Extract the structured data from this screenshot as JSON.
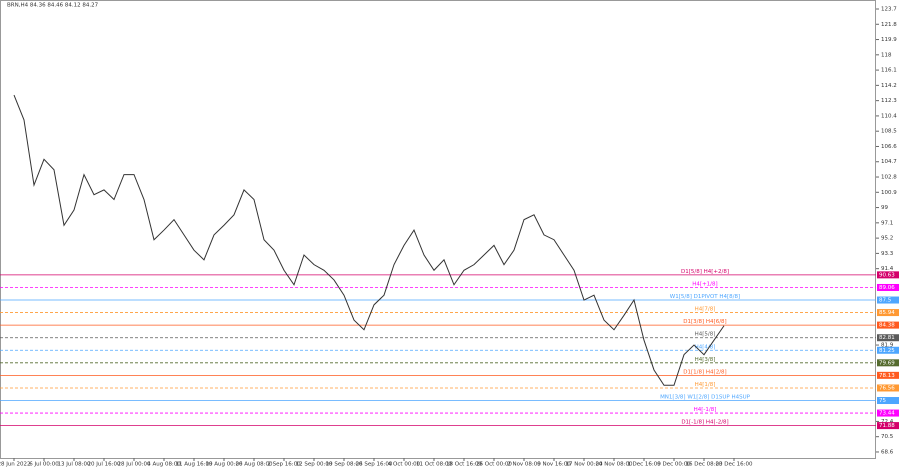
{
  "chart_data": {
    "type": "line",
    "title": "BRN,H4 84.36 84.46 84.12 84.27",
    "categories": [
      "28 Jun 2022",
      null,
      null,
      "6 Jul 00:00",
      null,
      null,
      "13 Jul 08:00",
      null,
      null,
      "20 Jul 16:00",
      null,
      null,
      "28 Jul 00:00",
      null,
      null,
      "4 Aug 08:00",
      null,
      null,
      "11 Aug 16:00",
      null,
      null,
      "19 Aug 00:00",
      null,
      null,
      "26 Aug 08:00",
      null,
      null,
      "2 Sep 16:00",
      null,
      null,
      "12 Sep 00:00",
      null,
      null,
      "19 Sep 08:00",
      null,
      null,
      "26 Sep 16:00",
      null,
      null,
      "4 Oct 00:00",
      null,
      null,
      "11 Oct 08:00",
      null,
      null,
      "18 Oct 16:00",
      null,
      null,
      "26 Oct 00:00",
      null,
      null,
      "2 Nov 08:00",
      null,
      null,
      "9 Nov 16:00",
      null,
      null,
      "17 Nov 00:00",
      null,
      null,
      "24 Nov 08:00",
      null,
      null,
      "1 Dec 16:00",
      null,
      null,
      "9 Dec 00:00",
      null,
      null,
      "16 Dec 08:00",
      null,
      null,
      "23 Dec 16:00"
    ],
    "series": [
      {
        "name": "BRN",
        "color": "#333333",
        "values": [
          113.0,
          109.9,
          101.8,
          105.0,
          103.7,
          96.8,
          98.7,
          103.1,
          100.6,
          101.2,
          100.0,
          103.1,
          103.1,
          100.0,
          95.0,
          96.2,
          97.5,
          95.6,
          93.7,
          92.5,
          95.6,
          96.8,
          98.1,
          101.2,
          100.0,
          95.0,
          93.7,
          91.2,
          89.4,
          93.1,
          91.9,
          91.2,
          90.0,
          88.1,
          85.0,
          83.8,
          86.9,
          88.1,
          91.9,
          94.3,
          96.2,
          93.1,
          91.2,
          92.5,
          89.4,
          91.2,
          91.9,
          93.1,
          94.3,
          91.9,
          93.7,
          97.5,
          98.1,
          95.6,
          95.0,
          93.1,
          91.2,
          87.5,
          88.1,
          85.0,
          83.8,
          85.6,
          87.5,
          82.5,
          78.8,
          76.9,
          76.9,
          80.7,
          81.9,
          80.7,
          82.5,
          84.3,
          null
        ]
      }
    ],
    "ylim": [
      67.85,
      124.57
    ],
    "yticks": [
      123.7,
      121.8,
      119.9,
      118.0,
      116.1,
      114.2,
      112.3,
      110.4,
      108.5,
      106.6,
      104.7,
      102.8,
      100.9,
      99.0,
      97.1,
      95.2,
      93.3,
      91.4,
      81.9,
      72.4,
      70.5,
      68.6
    ],
    "levels": [
      {
        "value": 90.63,
        "label": "D1[5/8] H4[+2/8]",
        "color": "#d4006a",
        "style": "solid"
      },
      {
        "value": 89.06,
        "label": "H4[+1/8]",
        "color": "#ff00ff",
        "style": "dashed"
      },
      {
        "value": 87.5,
        "label": "W1[5/8] D1PIVOT H4[8/8]",
        "color": "#4da6ff",
        "style": "solid"
      },
      {
        "value": 85.94,
        "label": "H4[7/8]",
        "color": "#ff9933",
        "style": "dashed"
      },
      {
        "value": 84.38,
        "label": "D1[3/8] H4[6/8]",
        "color": "#ff5a1f",
        "style": "solid"
      },
      {
        "value": 82.81,
        "label": "H4[5/8]",
        "color": "#5a5a5a",
        "style": "dashed"
      },
      {
        "value": 81.25,
        "label": "H4[4/8]",
        "color": "#4da6ff",
        "style": "dashed"
      },
      {
        "value": 79.69,
        "label": "H4[3/8]",
        "color": "#556b2f",
        "style": "dashed"
      },
      {
        "value": 78.13,
        "label": "D1[1/8] H4[2/8]",
        "color": "#ff5a1f",
        "style": "solid"
      },
      {
        "value": 76.56,
        "label": "H4[1/8]",
        "color": "#ff9933",
        "style": "dashed"
      },
      {
        "value": 75.0,
        "label": "MN1[3/8] W1[2/8] D1SUP H4SUP",
        "color": "#4da6ff",
        "style": "solid"
      },
      {
        "value": 73.44,
        "label": "H4[-1/8]",
        "color": "#ff00ff",
        "style": "dashed"
      },
      {
        "value": 71.88,
        "label": "D1[-1/8] H4[-2/8]",
        "color": "#d4006a",
        "style": "solid"
      }
    ]
  }
}
